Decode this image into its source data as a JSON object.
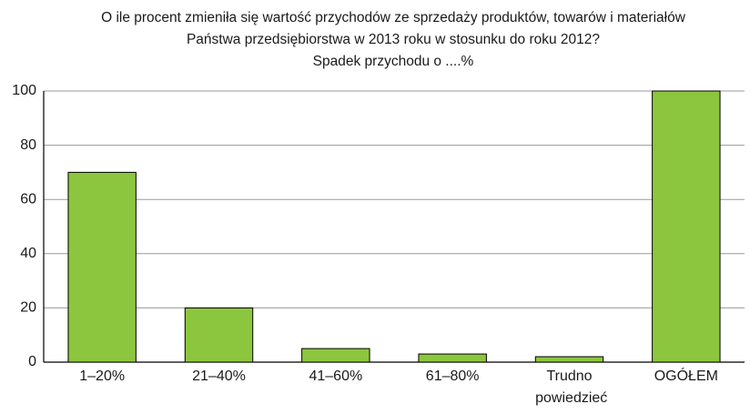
{
  "chart_data": {
    "type": "bar",
    "title": [
      "O ile procent zmieniła się wartość przychodów ze sprzedaży produktów, towarów i materiałów",
      "Państwa przedsiębiorstwa w 2013 roku w stosunku do roku 2012?"
    ],
    "subtitle": "Spadek przychodu o ....%",
    "categories": [
      "1–20%",
      "21–40%",
      "41–60%",
      "61–80%",
      "Trudno powiedzieć",
      "OGÓŁEM"
    ],
    "values": [
      70,
      20,
      5,
      3,
      2,
      100
    ],
    "color": "#8cc63e",
    "ylim": [
      0,
      100
    ],
    "yticks": [
      0,
      20,
      40,
      60,
      80,
      100
    ],
    "grid": true
  }
}
